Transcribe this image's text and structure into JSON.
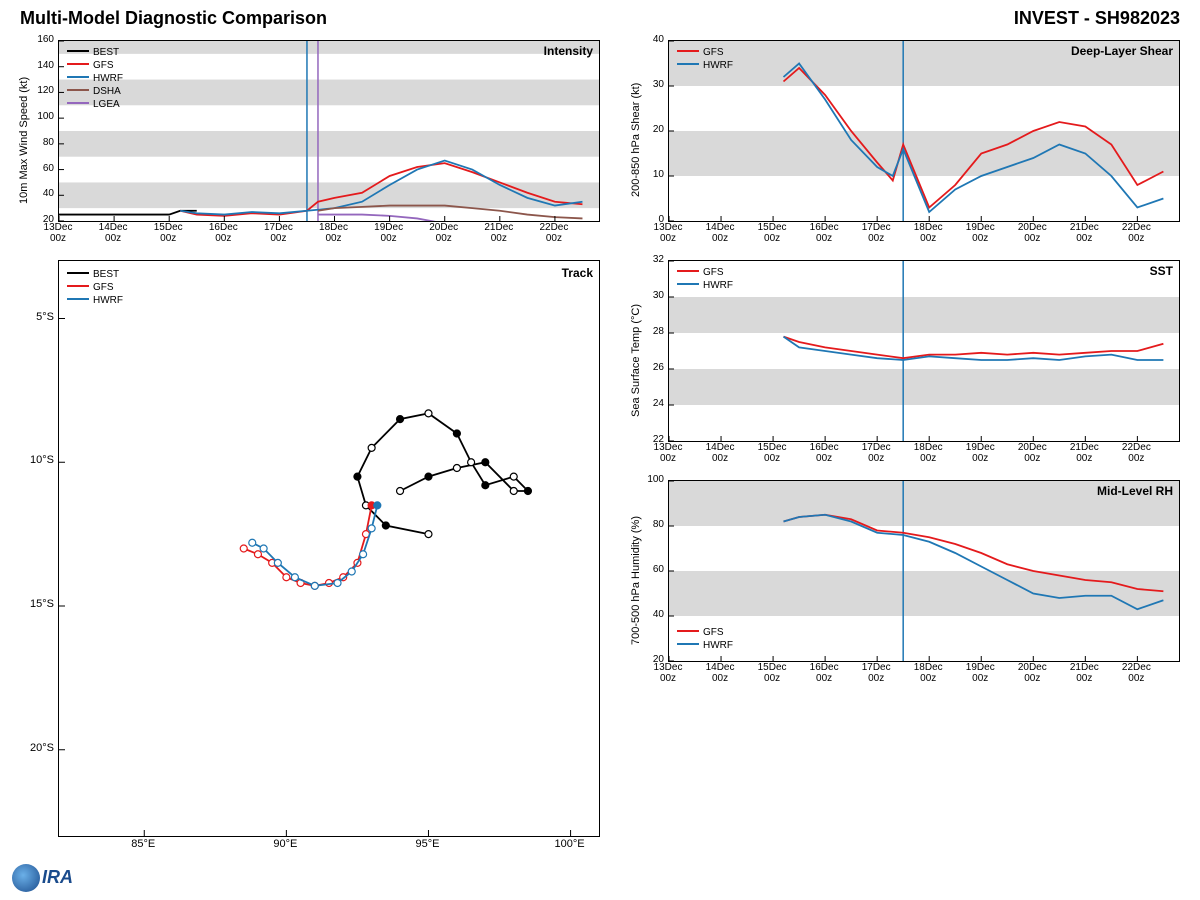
{
  "header": {
    "title_left": "Multi-Model Diagnostic Comparison",
    "title_right": "INVEST - SH982023"
  },
  "colors": {
    "BEST": "#000000",
    "GFS": "#e41a1c",
    "HWRF": "#1f77b4",
    "DSHA": "#8c564b",
    "LGEA": "#9467bd",
    "grid_band": "#d9d9d9",
    "axis": "#000000",
    "vline1": "#1f77b4",
    "vline2": "#9467bd"
  },
  "xaxis_time": {
    "labels": [
      "13Dec\n00z",
      "14Dec\n00z",
      "15Dec\n00z",
      "16Dec\n00z",
      "17Dec\n00z",
      "18Dec\n00z",
      "19Dec\n00z",
      "20Dec\n00z",
      "21Dec\n00z",
      "22Dec\n00z"
    ],
    "n": 10,
    "vline_idx": 4.5,
    "vline2_idx": 4.7
  },
  "intensity": {
    "title": "Intensity",
    "ylabel": "10m Max Wind Speed (kt)",
    "ylim": [
      20,
      160
    ],
    "ytick_step": 20,
    "bands": [
      [
        30,
        50
      ],
      [
        70,
        90
      ],
      [
        110,
        130
      ],
      [
        150,
        160
      ]
    ],
    "legend": [
      "BEST",
      "GFS",
      "HWRF",
      "DSHA",
      "LGEA"
    ],
    "series": {
      "BEST": {
        "x": [
          0,
          0.5,
          1,
          1.5,
          2,
          2.2,
          2.5
        ],
        "y": [
          25,
          25,
          25,
          25,
          25,
          28,
          28
        ]
      },
      "GFS": {
        "x": [
          2.2,
          2.5,
          3,
          3.5,
          4,
          4.5,
          4.7,
          5,
          5.5,
          6,
          6.5,
          7,
          7.5,
          8,
          8.5,
          9,
          9.5
        ],
        "y": [
          28,
          25,
          24,
          26,
          25,
          28,
          35,
          38,
          42,
          55,
          62,
          65,
          58,
          50,
          42,
          35,
          33
        ]
      },
      "HWRF": {
        "x": [
          2.2,
          2.5,
          3,
          3.5,
          4,
          4.5,
          5,
          5.5,
          6,
          6.5,
          7,
          7.5,
          8,
          8.5,
          9,
          9.5
        ],
        "y": [
          28,
          26,
          25,
          27,
          26,
          28,
          30,
          35,
          48,
          60,
          67,
          60,
          48,
          38,
          32,
          35
        ]
      },
      "DSHA": {
        "x": [
          4.7,
          5,
          5.5,
          6,
          6.5,
          7,
          7.5,
          8,
          8.5,
          9,
          9.5
        ],
        "y": [
          28,
          30,
          31,
          32,
          32,
          32,
          30,
          28,
          25,
          23,
          22
        ]
      },
      "LGEA": {
        "x": [
          4.7,
          5,
          5.5,
          6,
          6.5,
          7
        ],
        "y": [
          25,
          25,
          25,
          24,
          22,
          18
        ]
      }
    }
  },
  "shear": {
    "title": "Deep-Layer Shear",
    "ylabel": "200-850 hPa Shear (kt)",
    "ylim": [
      0,
      40
    ],
    "ytick_step": 10,
    "bands": [
      [
        10,
        20
      ],
      [
        30,
        40
      ]
    ],
    "legend": [
      "GFS",
      "HWRF"
    ],
    "series": {
      "GFS": {
        "x": [
          2.2,
          2.5,
          3,
          3.5,
          4,
          4.3,
          4.5,
          5,
          5.5,
          6,
          6.5,
          7,
          7.5,
          8,
          8.5,
          9,
          9.5
        ],
        "y": [
          31,
          34,
          28,
          20,
          13,
          9,
          17,
          3,
          8,
          15,
          17,
          20,
          22,
          21,
          17,
          8,
          11
        ]
      },
      "HWRF": {
        "x": [
          2.2,
          2.5,
          3,
          3.5,
          4,
          4.3,
          4.5,
          5,
          5.5,
          6,
          6.5,
          7,
          7.5,
          8,
          8.5,
          9,
          9.5
        ],
        "y": [
          32,
          35,
          27,
          18,
          12,
          10,
          16,
          2,
          7,
          10,
          12,
          14,
          17,
          15,
          10,
          3,
          5
        ]
      }
    }
  },
  "sst": {
    "title": "SST",
    "ylabel": "Sea Surface Temp (°C)",
    "ylim": [
      22,
      32
    ],
    "ytick_step": 2,
    "bands": [
      [
        24,
        26
      ],
      [
        28,
        30
      ]
    ],
    "legend": [
      "GFS",
      "HWRF"
    ],
    "series": {
      "GFS": {
        "x": [
          2.2,
          2.5,
          3,
          3.5,
          4,
          4.5,
          5,
          5.5,
          6,
          6.5,
          7,
          7.5,
          8,
          8.5,
          9,
          9.5
        ],
        "y": [
          27.8,
          27.5,
          27.2,
          27,
          26.8,
          26.6,
          26.8,
          26.8,
          26.9,
          26.8,
          26.9,
          26.8,
          26.9,
          27,
          27,
          27.4
        ]
      },
      "HWRF": {
        "x": [
          2.2,
          2.5,
          3,
          3.5,
          4,
          4.5,
          5,
          5.5,
          6,
          6.5,
          7,
          7.5,
          8,
          8.5,
          9,
          9.5
        ],
        "y": [
          27.8,
          27.2,
          27,
          26.8,
          26.6,
          26.5,
          26.7,
          26.6,
          26.5,
          26.5,
          26.6,
          26.5,
          26.7,
          26.8,
          26.5,
          26.5
        ]
      }
    }
  },
  "rh": {
    "title": "Mid-Level RH",
    "ylabel": "700-500 hPa Humidity (%)",
    "ylim": [
      20,
      100
    ],
    "ytick_step": 20,
    "bands": [
      [
        40,
        60
      ],
      [
        80,
        100
      ]
    ],
    "legend": [
      "GFS",
      "HWRF"
    ],
    "legend_pos": "bottom-left",
    "series": {
      "GFS": {
        "x": [
          2.2,
          2.5,
          3,
          3.5,
          4,
          4.5,
          5,
          5.5,
          6,
          6.5,
          7,
          7.5,
          8,
          8.5,
          9,
          9.5
        ],
        "y": [
          82,
          84,
          85,
          83,
          78,
          77,
          75,
          72,
          68,
          63,
          60,
          58,
          56,
          55,
          52,
          51
        ]
      },
      "HWRF": {
        "x": [
          2.2,
          2.5,
          3,
          3.5,
          4,
          4.5,
          5,
          5.5,
          6,
          6.5,
          7,
          7.5,
          8,
          8.5,
          9,
          9.5
        ],
        "y": [
          82,
          84,
          85,
          82,
          77,
          76,
          73,
          68,
          62,
          56,
          50,
          48,
          49,
          49,
          43,
          47
        ]
      }
    }
  },
  "track": {
    "title": "Track",
    "xlabel_ticks": [
      "85°E",
      "90°E",
      "95°E",
      "100°E"
    ],
    "xlim": [
      82,
      101
    ],
    "ylabel_ticks": [
      "5°S",
      "10°S",
      "15°S",
      "20°S"
    ],
    "ylim": [
      3,
      23
    ],
    "legend": [
      "BEST",
      "GFS",
      "HWRF"
    ],
    "series": {
      "BEST": {
        "pts": [
          [
            95,
            12.5
          ],
          [
            93.5,
            12.2
          ],
          [
            92.8,
            11.5
          ],
          [
            92.5,
            10.5
          ],
          [
            93,
            9.5
          ],
          [
            94,
            8.5
          ],
          [
            95,
            8.3
          ],
          [
            96,
            9
          ],
          [
            96.5,
            10
          ],
          [
            97,
            10.8
          ],
          [
            98,
            10.5
          ],
          [
            98.5,
            11
          ],
          [
            98,
            11
          ],
          [
            97,
            10
          ],
          [
            96,
            10.2
          ],
          [
            95,
            10.5
          ],
          [
            94,
            11
          ]
        ],
        "markers": [
          0,
          1,
          0,
          1,
          0,
          1,
          0,
          1,
          0,
          1,
          0,
          1,
          0,
          1,
          0,
          1,
          0
        ]
      },
      "GFS": {
        "pts": [
          [
            93,
            11.5
          ],
          [
            92.8,
            12.5
          ],
          [
            92.5,
            13.5
          ],
          [
            92,
            14
          ],
          [
            91.5,
            14.2
          ],
          [
            91,
            14.3
          ],
          [
            90.5,
            14.2
          ],
          [
            90,
            14
          ],
          [
            89.5,
            13.5
          ],
          [
            89,
            13.2
          ],
          [
            88.5,
            13
          ]
        ],
        "markers": [
          1,
          0,
          0,
          0,
          0,
          0,
          0,
          0,
          0,
          0,
          0
        ]
      },
      "HWRF": {
        "pts": [
          [
            93.2,
            11.5
          ],
          [
            93,
            12.3
          ],
          [
            92.7,
            13.2
          ],
          [
            92.3,
            13.8
          ],
          [
            91.8,
            14.2
          ],
          [
            91,
            14.3
          ],
          [
            90.3,
            14
          ],
          [
            89.7,
            13.5
          ],
          [
            89.2,
            13
          ],
          [
            88.8,
            12.8
          ]
        ],
        "markers": [
          1,
          0,
          0,
          0,
          0,
          0,
          0,
          0,
          0,
          0
        ]
      }
    }
  },
  "logo": "IRA"
}
